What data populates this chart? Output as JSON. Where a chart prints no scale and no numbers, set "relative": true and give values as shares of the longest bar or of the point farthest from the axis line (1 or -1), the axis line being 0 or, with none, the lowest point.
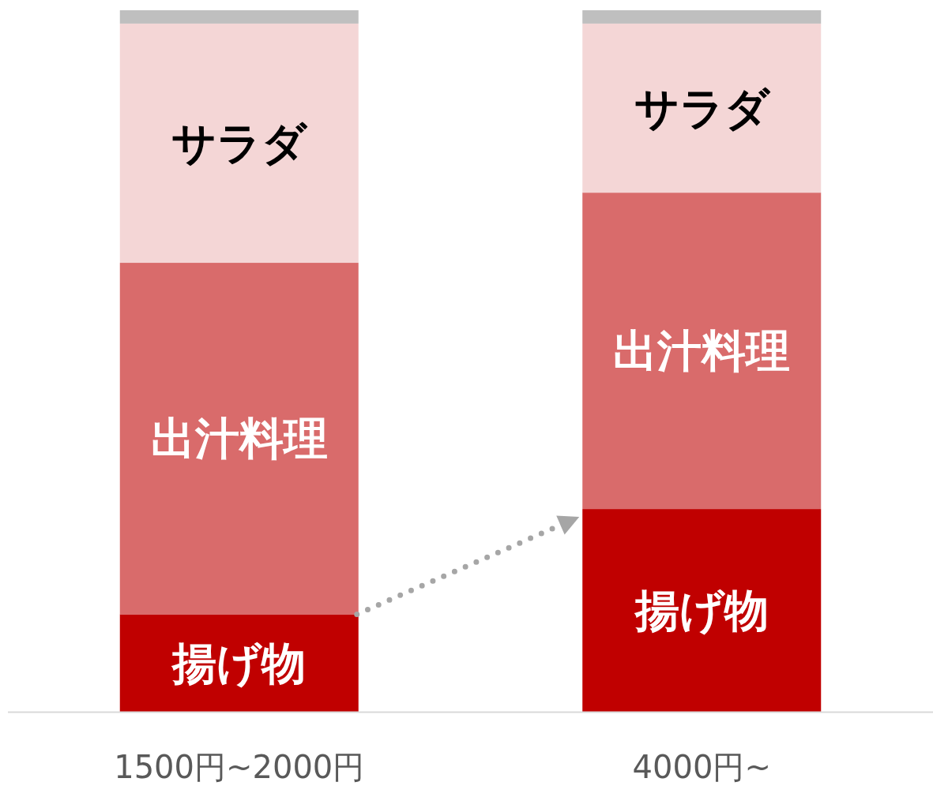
{
  "chart_data": {
    "type": "bar",
    "stacked": true,
    "relative": true,
    "categories": [
      "1500円~2000円",
      "4000円~"
    ],
    "series": [
      {
        "name": "揚げ物",
        "color": "#c00000",
        "values": [
          0.139,
          0.289
        ]
      },
      {
        "name": "出汁料理",
        "color": "#d96b6b",
        "values": [
          0.501,
          0.451
        ]
      },
      {
        "name": "サラダ",
        "color": "#f4d6d6",
        "values": [
          0.341,
          0.241
        ]
      },
      {
        "color": "#bfbfbf",
        "values": [
          0.019,
          0.019
        ]
      }
    ]
  }
}
